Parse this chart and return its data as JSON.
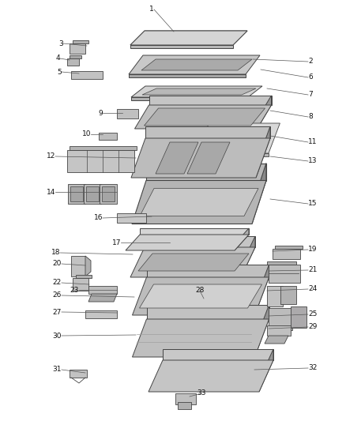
{
  "bg": "#f5f5f5",
  "ec": "#444444",
  "fc_light": "#e8e8e8",
  "fc_mid": "#c8c8c8",
  "fc_dark": "#a8a8a8",
  "fc_darker": "#888888",
  "lc": "#555555",
  "label_fs": 6.5,
  "label_color": "#111111",
  "figw": 4.38,
  "figh": 5.33,
  "dpi": 100
}
